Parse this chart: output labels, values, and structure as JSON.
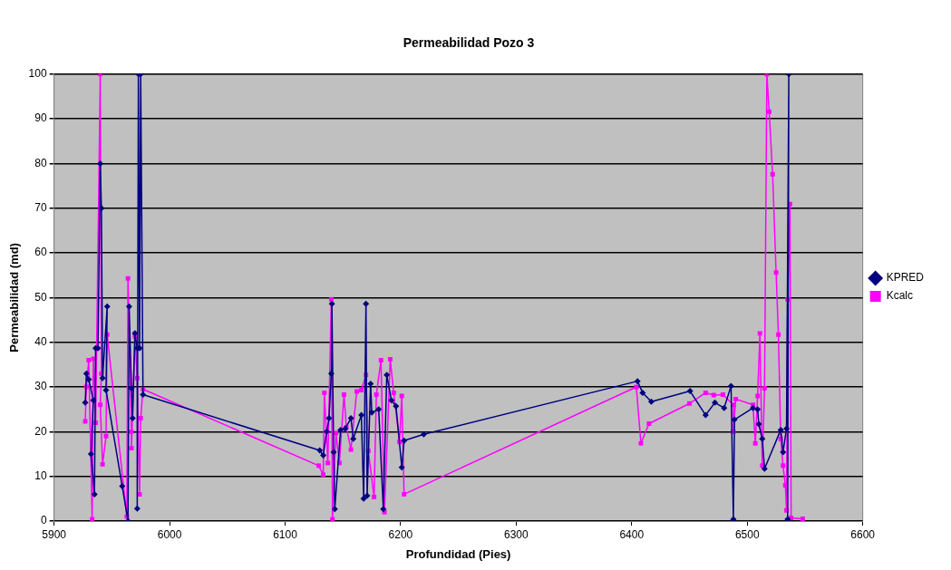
{
  "chart_data": {
    "type": "line",
    "title": "Permeabilidad Pozo 3",
    "xlabel": "Profundidad (Pies)",
    "ylabel": "Permeabilidad (md)",
    "xlim": [
      5900,
      6600
    ],
    "xticks": [
      5900,
      6000,
      6100,
      6200,
      6300,
      6400,
      6500,
      6600
    ],
    "ylim": [
      0,
      100
    ],
    "yticks": [
      0,
      10,
      20,
      30,
      40,
      50,
      60,
      70,
      80,
      90,
      100
    ],
    "grid": "y",
    "legend": "right",
    "series": [
      {
        "name": "KPRED",
        "color": "#000080",
        "marker": "diamond",
        "x": [
          5927,
          5928,
          5930,
          5934,
          5932,
          5935,
          5936,
          5938,
          5940,
          5941,
          5942,
          5946,
          5945,
          5959,
          5964,
          5965,
          5967,
          5968,
          5970,
          5972,
          5972,
          5973,
          5974,
          5975,
          5977,
          6130,
          6133,
          6136,
          6138,
          6140,
          6140.5,
          6142,
          6143,
          6148,
          6152,
          6157,
          6159,
          6166,
          6168,
          6170,
          6171,
          6174,
          6175,
          6181,
          6185,
          6188,
          6192,
          6196,
          6201,
          6203,
          6220,
          6405,
          6409.5,
          6417,
          6450.5,
          6464,
          6472,
          6480,
          6486,
          6488,
          6489,
          6505,
          6509,
          6510,
          6513,
          6515,
          6529,
          6531,
          6534,
          6536,
          6535
        ],
        "values": [
          26.5,
          33,
          31.7,
          27,
          15,
          6,
          38.7,
          38.7,
          80,
          70,
          32,
          48,
          29.3,
          7.8,
          0,
          48,
          29.7,
          23,
          42,
          38.7,
          2.8,
          100,
          38.7,
          100,
          28.3,
          15.8,
          14.7,
          20,
          23,
          33,
          48.6,
          15.4,
          2.7,
          20.4,
          20.7,
          23,
          18.4,
          23.7,
          5,
          48.6,
          5.7,
          30.7,
          24.3,
          25,
          2.7,
          32.7,
          27,
          25.7,
          12,
          18,
          19.4,
          31.3,
          28.7,
          26.7,
          29.1,
          23.7,
          26.5,
          25.3,
          30.2,
          0.4,
          22.7,
          25.3,
          25,
          21.7,
          18.4,
          11.7,
          20.4,
          15.4,
          20.7,
          100,
          0.4
        ]
      },
      {
        "name": "Kcalc",
        "color": "#ff00ff",
        "marker": "square",
        "x": [
          5927,
          5928,
          5930,
          5933,
          5934,
          5935,
          5936,
          5940,
          5941,
          5940,
          5942,
          5945,
          5946,
          5963,
          5964,
          5967,
          5967,
          5970,
          5972,
          5974,
          5975,
          5977,
          6129,
          6133,
          6134,
          6137,
          6140,
          6141,
          6144,
          6147,
          6151,
          6153,
          6157,
          6162,
          6166,
          6170,
          6172,
          6177,
          6179,
          6183,
          6186,
          6191,
          6194,
          6199,
          6201,
          6203,
          6404,
          6408,
          6415,
          6450,
          6464,
          6471,
          6479,
          6488,
          6488,
          6490,
          6505,
          6507,
          6509,
          6511,
          6513,
          6515,
          6517,
          6519,
          6522,
          6525,
          6527,
          6529,
          6531,
          6533,
          6534,
          6535,
          6537,
          6538,
          6548
        ],
        "values": [
          22.3,
          30,
          36,
          0.4,
          36.3,
          32,
          22,
          100,
          33,
          26,
          12.7,
          19,
          41.7,
          1,
          54.3,
          20,
          16.3,
          41.3,
          32,
          6,
          23,
          29.5,
          12.4,
          10.4,
          28.7,
          13,
          49.6,
          0.4,
          19.7,
          13,
          28.3,
          21,
          16,
          29,
          29.3,
          32.7,
          15.7,
          5.4,
          28.3,
          36,
          2,
          36.2,
          28.7,
          17.7,
          28,
          6,
          30,
          17.4,
          21.8,
          26.3,
          28.7,
          28.2,
          28.3,
          26,
          20,
          27.3,
          26,
          17.4,
          28,
          42,
          12.4,
          29.7,
          100,
          91.6,
          77.6,
          55.6,
          41.7,
          18.4,
          12.4,
          8,
          2.4,
          49.6,
          70.9,
          0.7,
          0.5
        ]
      }
    ]
  }
}
